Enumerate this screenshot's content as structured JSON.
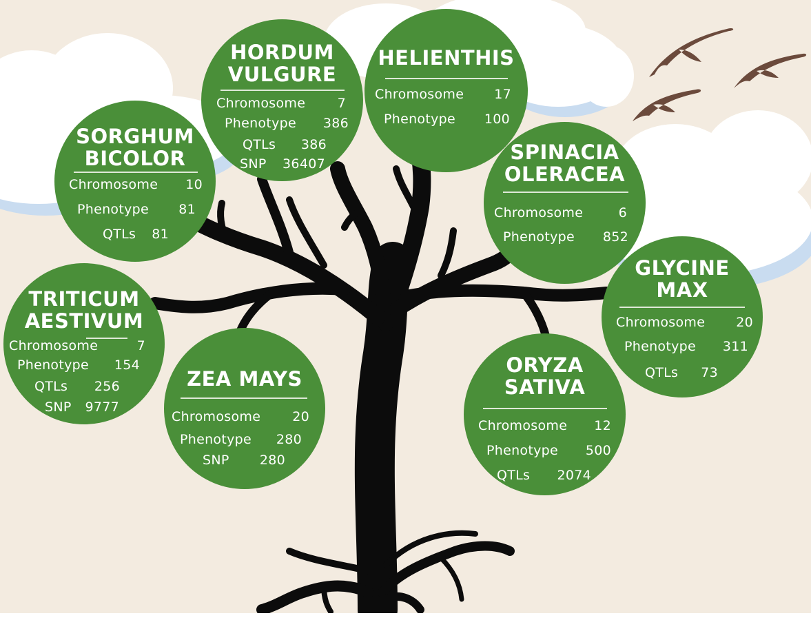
{
  "colors": {
    "background": "#f3ebe0",
    "node_fill": "#4a8f39",
    "node_text": "#ffffff",
    "tree": "#0c0c0c",
    "cloud": "#ffffff",
    "cloud_shadow": "#c9dcf0",
    "birds": "#6b4a3c"
  },
  "species": [
    {
      "id": "hordum",
      "title_lines": [
        "HORDUM",
        "VULGURE"
      ],
      "rows": [
        {
          "label": "Chromosome",
          "value": "7"
        },
        {
          "label": "Phenotype",
          "value": "386"
        },
        {
          "label": "QTLs",
          "value": "386"
        },
        {
          "label": "SNP",
          "value": "36407"
        }
      ]
    },
    {
      "id": "helienthis",
      "title_lines": [
        "HELIENTHIS"
      ],
      "rows": [
        {
          "label": "Chromosome",
          "value": "17"
        },
        {
          "label": "Phenotype",
          "value": "100"
        }
      ]
    },
    {
      "id": "sorghum",
      "title_lines": [
        "SORGHUM",
        "BICOLOR"
      ],
      "rows": [
        {
          "label": "Chromosome",
          "value": "10"
        },
        {
          "label": "Phenotype",
          "value": "81"
        },
        {
          "label": "QTLs",
          "value": "81"
        }
      ]
    },
    {
      "id": "spinacia",
      "title_lines": [
        "SPINACIA",
        "OLERACEA"
      ],
      "rows": [
        {
          "label": "Chromosome",
          "value": "6"
        },
        {
          "label": "Phenotype",
          "value": "852"
        }
      ]
    },
    {
      "id": "glycine",
      "title_lines": [
        "GLYCINE",
        "MAX"
      ],
      "rows": [
        {
          "label": "Chromosome",
          "value": "20"
        },
        {
          "label": "Phenotype",
          "value": "311"
        },
        {
          "label": "QTLs",
          "value": "73"
        }
      ]
    },
    {
      "id": "triticum",
      "title_lines": [
        "TRITICUM",
        "AESTIVUM"
      ],
      "rows": [
        {
          "label": "Chromosome",
          "value": "7"
        },
        {
          "label": "Phenotype",
          "value": "154"
        },
        {
          "label": "QTLs",
          "value": "256"
        },
        {
          "label": "SNP",
          "value": "9777"
        }
      ]
    },
    {
      "id": "zea",
      "title_lines": [
        "ZEA MAYS"
      ],
      "rows": [
        {
          "label": "Chromosome",
          "value": "20"
        },
        {
          "label": "Phenotype",
          "value": "280"
        },
        {
          "label": "SNP",
          "value": "280"
        }
      ]
    },
    {
      "id": "oryza",
      "title_lines": [
        "ORYZA",
        "SATIVA"
      ],
      "rows": [
        {
          "label": "Chromosome",
          "value": "12"
        },
        {
          "label": "Phenotype",
          "value": "500"
        },
        {
          "label": "QTLs",
          "value": "2074"
        }
      ]
    }
  ]
}
